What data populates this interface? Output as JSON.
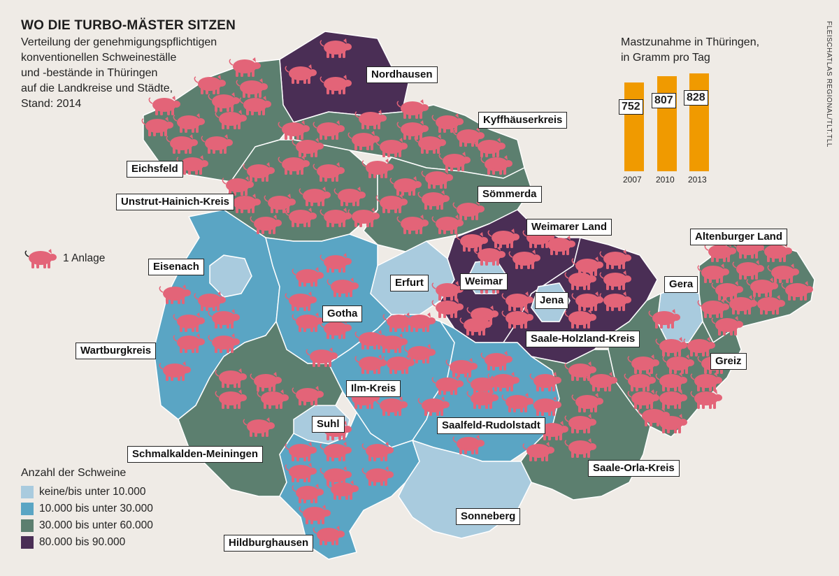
{
  "title": "WO DIE TURBO-MÄSTER SITZEN",
  "subtitle_lines": [
    "Verteilung der genehmigungspflichtigen",
    "konventionellen Schweineställe",
    "und -bestände in Thüringen",
    "auf die Landkreise und Städte,",
    "Stand: 2014"
  ],
  "pig_legend": {
    "icon": "pig-icon",
    "label": "1 Anlage"
  },
  "legend": {
    "title": "Anzahl der Schweine",
    "items": [
      {
        "label": "keine/bis unter 10.000",
        "color": "#a9cbde"
      },
      {
        "label": "10.000 bis unter 30.000",
        "color": "#5aa5c4"
      },
      {
        "label": "30.000 bis unter 60.000",
        "color": "#5c7f6f"
      },
      {
        "label": "80.000 bis 90.000",
        "color": "#4a2e55"
      }
    ]
  },
  "pig_color": "#e36478",
  "regions": [
    {
      "name": "Nordhausen",
      "class": 3
    },
    {
      "name": "Kyffhäuserkreis",
      "class": 2
    },
    {
      "name": "Eichsfeld",
      "class": 2
    },
    {
      "name": "Unstrut-Hainich-Kreis",
      "class": 2
    },
    {
      "name": "Sömmerda",
      "class": 2
    },
    {
      "name": "Weimarer Land",
      "class": 3
    },
    {
      "name": "Altenburger Land",
      "class": 2
    },
    {
      "name": "Eisenach",
      "class": 0
    },
    {
      "name": "Erfurt",
      "class": 0
    },
    {
      "name": "Weimar",
      "class": 0
    },
    {
      "name": "Jena",
      "class": 0
    },
    {
      "name": "Gera",
      "class": 0
    },
    {
      "name": "Gotha",
      "class": 1
    },
    {
      "name": "Wartburgkreis",
      "class": 1
    },
    {
      "name": "Saale-Holzland-Kreis",
      "class": 3
    },
    {
      "name": "Greiz",
      "class": 2
    },
    {
      "name": "Ilm-Kreis",
      "class": 1
    },
    {
      "name": "Suhl",
      "class": 0
    },
    {
      "name": "Saalfeld-Rudolstadt",
      "class": 1
    },
    {
      "name": "Schmalkalden-Meiningen",
      "class": 2
    },
    {
      "name": "Saale-Orla-Kreis",
      "class": 2
    },
    {
      "name": "Sonneberg",
      "class": 0
    },
    {
      "name": "Hildburghausen",
      "class": 1
    }
  ],
  "chart_data": {
    "type": "bar",
    "title": "Mastzunahme in Thüringen,",
    "subtitle": "in Gramm pro Tag",
    "categories": [
      "2007",
      "2010",
      "2013"
    ],
    "values": [
      752,
      807,
      828
    ],
    "color": "#f09a00"
  },
  "source": "FLEISCHATLAS REGIONAL/TLT.TLL"
}
